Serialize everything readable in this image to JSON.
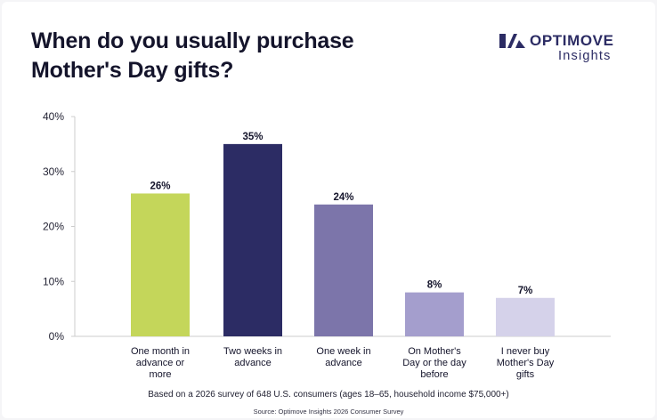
{
  "title": "When do you usually purchase Mother's Day gifts?",
  "logo": {
    "name": "OPTIMOVE",
    "subtitle": "Insights"
  },
  "colors": {
    "bars": [
      "#c4d65a",
      "#2c2c64",
      "#7c75aa",
      "#a49ecd",
      "#d5d2ea"
    ],
    "axis": "#cccccc",
    "text": "#14142b",
    "brand": "#2c2c64"
  },
  "chart_data": {
    "type": "bar",
    "title": "When do you usually purchase Mother's Day gifts?",
    "xlabel": "",
    "ylabel": "",
    "ylim": [
      0,
      40
    ],
    "yticks": [
      0,
      10,
      20,
      30,
      40
    ],
    "ytick_labels": [
      "0%",
      "10%",
      "20%",
      "30%",
      "40%"
    ],
    "grid": false,
    "categories": [
      [
        "One month in",
        "advance or",
        "more"
      ],
      [
        "Two weeks in",
        "advance"
      ],
      [
        "One week in",
        "advance"
      ],
      [
        "On Mother's",
        "Day or the day",
        "before"
      ],
      [
        "I never buy",
        "Mother's Day",
        "gifts"
      ]
    ],
    "values": [
      26,
      35,
      24,
      8,
      7
    ],
    "data_labels": [
      "26%",
      "35%",
      "24%",
      "8%",
      "7%"
    ]
  },
  "footnote": "Based on a 2026 survey of 648 U.S. consumers (ages 18–65, household income $75,000+)",
  "source": "Source: Optimove Insights 2026 Consumer Survey"
}
